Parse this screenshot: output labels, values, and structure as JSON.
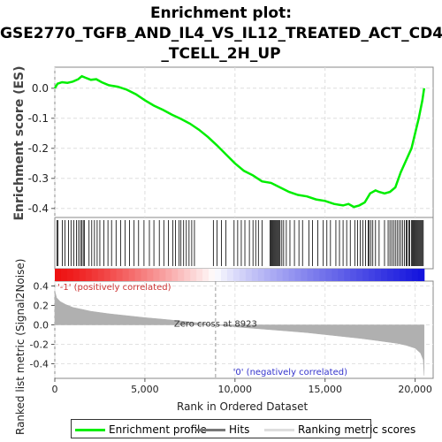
{
  "title_lines": [
    "Enrichment plot:",
    "GSE2770_TGFB_AND_IL4_VS_IL12_TREATED_ACT_CD4",
    "_TCELL_2H_UP"
  ],
  "colors": {
    "enrichment": "#00ee00",
    "hits": "#000000",
    "metric": "#b0b0b0",
    "pos_label": "#cc3333",
    "neg_label": "#3333cc",
    "heat_pos": "#ee1111",
    "heat_mid": "#ffffff",
    "heat_neg": "#1111dd",
    "zero_line": "#999999"
  },
  "chart_data": [
    {
      "type": "line",
      "name": "enrichment-profile",
      "ylabel": "Enrichment score (ES)",
      "xlim": [
        0,
        21000
      ],
      "ylim": [
        -0.43,
        0.07
      ],
      "yticks": [
        0.0,
        -0.1,
        -0.2,
        -0.3,
        -0.4
      ],
      "ytick_labels": [
        "0.0",
        "-0.1",
        "-0.2",
        "-0.3",
        "-0.4"
      ],
      "x": [
        0,
        150,
        400,
        700,
        1000,
        1300,
        1500,
        1700,
        2000,
        2300,
        2600,
        3000,
        3500,
        4000,
        4500,
        5000,
        5500,
        6000,
        6500,
        7000,
        7500,
        8000,
        8500,
        9000,
        9500,
        10000,
        10500,
        11000,
        11500,
        12000,
        12500,
        13000,
        13500,
        14000,
        14500,
        15000,
        15500,
        16000,
        16300,
        16600,
        16900,
        17200,
        17500,
        17800,
        18000,
        18300,
        18600,
        18900,
        19200,
        19500,
        19800,
        20000,
        20200,
        20400,
        20500
      ],
      "y": [
        0.0,
        0.015,
        0.02,
        0.018,
        0.022,
        0.03,
        0.04,
        0.035,
        0.028,
        0.03,
        0.02,
        0.01,
        0.005,
        -0.005,
        -0.02,
        -0.04,
        -0.058,
        -0.072,
        -0.088,
        -0.102,
        -0.118,
        -0.138,
        -0.162,
        -0.19,
        -0.22,
        -0.25,
        -0.275,
        -0.29,
        -0.31,
        -0.315,
        -0.33,
        -0.345,
        -0.355,
        -0.36,
        -0.37,
        -0.375,
        -0.385,
        -0.39,
        -0.385,
        -0.395,
        -0.39,
        -0.38,
        -0.35,
        -0.34,
        -0.345,
        -0.35,
        -0.345,
        -0.33,
        -0.28,
        -0.24,
        -0.2,
        -0.15,
        -0.1,
        -0.04,
        0.0
      ]
    },
    {
      "type": "bar",
      "name": "ranked-list-metric",
      "ylabel": "Ranked list metric (Signal2Noise)",
      "xlabel": "Rank in Ordered Dataset",
      "xlim": [
        0,
        21000
      ],
      "ylim": [
        -0.55,
        0.45
      ],
      "xticks": [
        0,
        5000,
        10000,
        15000,
        20000
      ],
      "xtick_labels": [
        "0",
        "5,000",
        "10,000",
        "15,000",
        "20,000"
      ],
      "yticks": [
        0.4,
        0.2,
        0.0,
        -0.2,
        -0.4
      ],
      "ytick_labels": [
        "0.4",
        "0.2",
        "0.0",
        "-0.2",
        "-0.4"
      ],
      "n_genes": 20500,
      "zero_cross": 8923,
      "zero_cross_label": "Zero cross at 8923",
      "pos_label": "'-1' (positively correlated)",
      "neg_label": "'0' (negatively correlated)",
      "metric_x": [
        0,
        100,
        300,
        600,
        1000,
        2000,
        3000,
        4000,
        5000,
        6000,
        7000,
        8000,
        8923,
        10000,
        11000,
        12000,
        13000,
        14000,
        15000,
        16000,
        17000,
        18000,
        19000,
        19500,
        20000,
        20300,
        20450,
        20500
      ],
      "metric_y": [
        0.35,
        0.28,
        0.24,
        0.21,
        0.18,
        0.14,
        0.115,
        0.095,
        0.075,
        0.058,
        0.04,
        0.02,
        0.0,
        -0.02,
        -0.035,
        -0.05,
        -0.065,
        -0.08,
        -0.1,
        -0.12,
        -0.14,
        -0.165,
        -0.19,
        -0.21,
        -0.24,
        -0.29,
        -0.36,
        -0.52
      ]
    }
  ],
  "hits": [
    120,
    180,
    420,
    560,
    760,
    900,
    1050,
    1200,
    1320,
    1420,
    1500,
    1580,
    1650,
    1900,
    2050,
    2200,
    2350,
    2500,
    2720,
    2950,
    3150,
    3400,
    3650,
    3900,
    4150,
    4400,
    4650,
    4950,
    5250,
    5500,
    5800,
    6050,
    6300,
    6550,
    6700,
    6900,
    7000,
    7150,
    7300,
    7450,
    7600,
    7750,
    8800,
    9000,
    9250,
    9500,
    9950,
    10150,
    10350,
    10550,
    10800,
    11000,
    11150,
    11300,
    11500,
    11950,
    12000,
    12050,
    12100,
    12150,
    12200,
    12250,
    12300,
    12350,
    12400,
    12450,
    12500,
    12600,
    12700,
    12850,
    13050,
    13300,
    13550,
    13750,
    14100,
    14300,
    14600,
    14900,
    15100,
    15300,
    15600,
    15800,
    16000,
    16200,
    16400,
    16650,
    16800,
    16950,
    17100,
    17250,
    17400,
    17450,
    17550,
    17650,
    17800,
    18000,
    18300,
    18500,
    18600,
    18700,
    18800,
    18900,
    19000,
    19100,
    19200,
    19300,
    19400,
    19500,
    19550,
    19650,
    19700,
    19800,
    19850,
    19900,
    19950,
    20000,
    20050,
    20100,
    20150,
    20200,
    20250,
    20300,
    20350,
    20400,
    20450
  ],
  "legend": {
    "items": [
      "Enrichment profile",
      "Hits",
      "Ranking metric scores"
    ]
  }
}
